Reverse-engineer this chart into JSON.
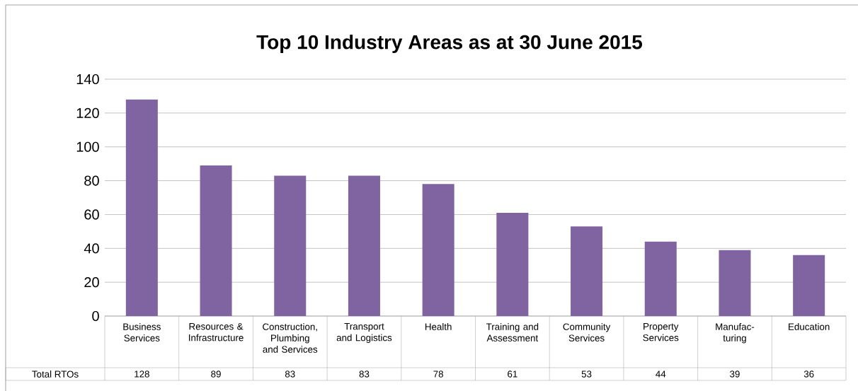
{
  "chart_data": {
    "type": "bar",
    "title": "Top 10 Industry Areas as at 30 June 2015",
    "categories": [
      "Business Services",
      "Resources & Infrastructure",
      "Construction, Plumbing and Services",
      "Transport and Logistics",
      "Health",
      "Training and Assessment",
      "Community Services",
      "Property Services",
      "Manufac- turing",
      "Education"
    ],
    "series": [
      {
        "name": "Total RTOs",
        "color": "#8064a2",
        "values": [
          128,
          89,
          83,
          83,
          78,
          61,
          53,
          44,
          39,
          36
        ]
      }
    ],
    "ylim": [
      0,
      140
    ],
    "yticks": [
      0,
      20,
      40,
      60,
      80,
      100,
      120,
      140
    ],
    "grid": "y",
    "data_labels": true
  }
}
